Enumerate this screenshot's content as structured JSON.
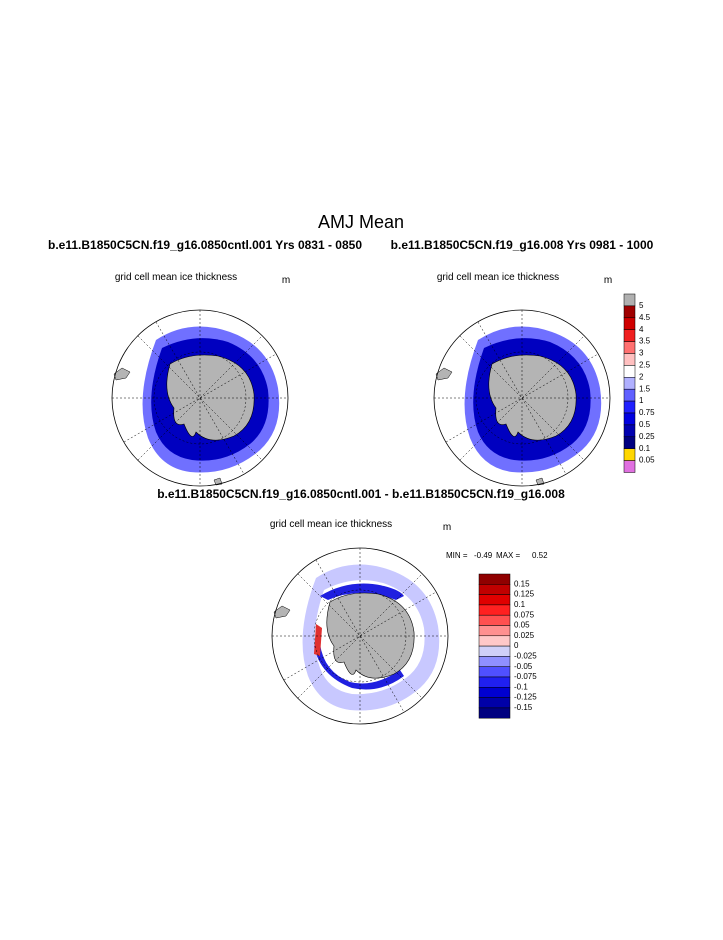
{
  "title": "AMJ Mean",
  "panels": [
    {
      "case": "b.e11.B1850C5CN.f19_g16.0850cntl.001  Yrs 0831 - 0850",
      "subtitle": "grid cell mean ice thickness",
      "units": "m"
    },
    {
      "case": "b.e11.B1850C5CN.f19_g16.008  Yrs 0981 - 1000",
      "subtitle": "grid cell mean ice thickness",
      "units": "m"
    }
  ],
  "diff_panel": {
    "title": "b.e11.B1850C5CN.f19_g16.0850cntl.001 - b.e11.B1850C5CN.f19_g16.008",
    "subtitle": "grid cell mean ice thickness",
    "units": "m",
    "min_label": "MIN =",
    "min": -0.49,
    "max_label": "MAX =",
    "max": 0.52
  },
  "colorbar": {
    "labels": [
      5,
      4.5,
      4,
      3.5,
      3,
      2.5,
      2,
      1.5,
      1,
      0.75,
      0.5,
      0.25,
      0.1,
      0.05
    ],
    "colors": [
      "#b0b0b0",
      "#a00000",
      "#d00000",
      "#f02020",
      "#ff7070",
      "#ffc0c0",
      "#ffffff",
      "#b0b0ff",
      "#6060ff",
      "#2020ff",
      "#0000e0",
      "#0000b0",
      "#000080",
      "#ffd700",
      "#e070e0"
    ]
  },
  "diff_colorbar": {
    "labels": [
      0.15,
      0.125,
      0.1,
      0.075,
      0.05,
      0.025,
      0,
      -0.025,
      -0.05,
      -0.075,
      -0.1,
      -0.125,
      -0.15
    ],
    "colors": [
      "#900000",
      "#c00000",
      "#e00000",
      "#ff2020",
      "#ff5050",
      "#ff9090",
      "#ffc8c8",
      "#d0d0f8",
      "#9090ff",
      "#5050ff",
      "#2020f0",
      "#0000d0",
      "#0000a8",
      "#000080"
    ]
  }
}
